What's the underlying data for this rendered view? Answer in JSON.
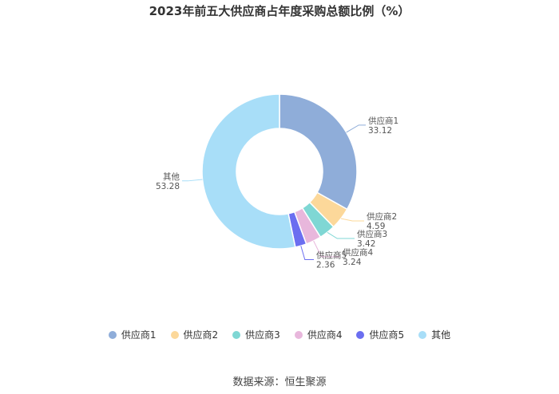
{
  "title": "2023年前五大供应商占年度采购总额比例（%）",
  "source": "数据来源：恒生聚源",
  "chart_data": {
    "type": "pie",
    "donut": true,
    "title": "2023年前五大供应商占年度采购总额比例（%）",
    "legend_position": "bottom",
    "slices": [
      {
        "label": "供应商1",
        "value": 33.12,
        "value_label": "33.12",
        "color": "#8fadd9"
      },
      {
        "label": "供应商2",
        "value": 4.59,
        "value_label": "4.59",
        "color": "#fcd89a"
      },
      {
        "label": "供应商3",
        "value": 3.42,
        "value_label": "3.42",
        "color": "#7fd7d4"
      },
      {
        "label": "供应商4",
        "value": 3.24,
        "value_label": "3.24",
        "color": "#e8b7dc"
      },
      {
        "label": "供应商5",
        "value": 2.36,
        "value_label": "2.36",
        "color": "#6b6ef0"
      },
      {
        "label": "其他",
        "value": 53.28,
        "value_label": "53.28",
        "color": "#a8def8"
      }
    ]
  }
}
